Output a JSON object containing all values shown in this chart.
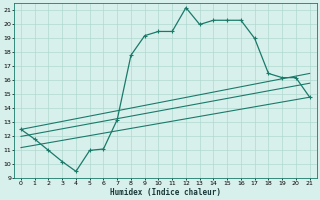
{
  "xlabel": "Humidex (Indice chaleur)",
  "bg_color": "#d8f0ec",
  "grid_color": "#b0d8d0",
  "line_color": "#1a7a6a",
  "xlim": [
    -0.5,
    21.5
  ],
  "ylim": [
    9,
    21.5
  ],
  "xticks": [
    0,
    1,
    2,
    3,
    4,
    5,
    6,
    7,
    8,
    9,
    10,
    11,
    12,
    13,
    14,
    15,
    16,
    17,
    18,
    19,
    20,
    21
  ],
  "yticks": [
    9,
    10,
    11,
    12,
    13,
    14,
    15,
    16,
    17,
    18,
    19,
    20,
    21
  ],
  "line1_x": [
    0,
    1,
    2,
    3,
    4,
    5,
    6,
    7,
    8,
    9,
    10,
    11,
    12,
    13,
    14,
    15,
    16,
    17,
    18,
    19,
    20,
    21
  ],
  "line1_y": [
    12.5,
    11.8,
    11.0,
    10.2,
    9.5,
    11.0,
    11.1,
    13.2,
    17.8,
    19.2,
    19.5,
    19.5,
    21.2,
    20.0,
    20.3,
    20.3,
    20.3,
    19.0,
    16.5,
    16.2,
    16.2,
    14.8
  ],
  "line2_x": [
    0,
    21
  ],
  "line2_y": [
    12.5,
    16.5
  ],
  "line3_x": [
    0,
    21
  ],
  "line3_y": [
    12.0,
    15.8
  ],
  "line4_x": [
    0,
    21
  ],
  "line4_y": [
    11.2,
    14.8
  ]
}
